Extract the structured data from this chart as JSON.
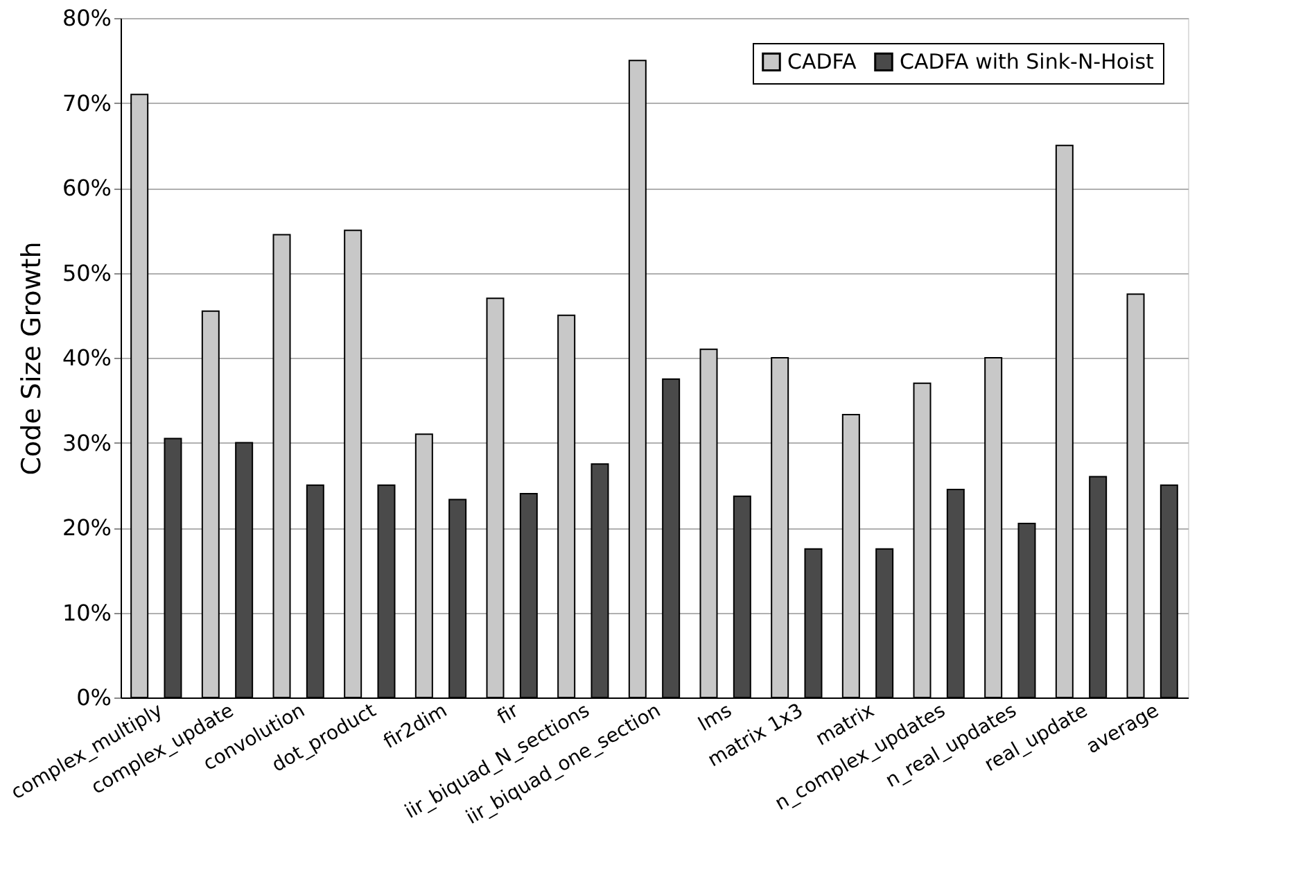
{
  "chart_data": {
    "type": "bar",
    "ylabel": "Code Size Growth",
    "categories": [
      "complex_multiply",
      "complex_update",
      "convolution",
      "dot_product",
      "fir2dim",
      "fir",
      "iir_biquad_N_sections",
      "iir_biquad_one_section",
      "lms",
      "matrix 1x3",
      "matrix",
      "n_complex_updates",
      "n_real_updates",
      "real_update",
      "average"
    ],
    "series": [
      {
        "name": "CADFA",
        "color": "#c8c8c8",
        "values": [
          71,
          45.5,
          54.5,
          55,
          31,
          47,
          45,
          75,
          41,
          40,
          33.3,
          37,
          40,
          65,
          47.5
        ]
      },
      {
        "name": "CADFA with Sink-N-Hoist",
        "color": "#4a4a4a",
        "values": [
          30.5,
          30,
          25,
          25,
          23.3,
          24,
          27.5,
          37.5,
          23.7,
          17.5,
          17.5,
          24.5,
          20.5,
          26,
          25
        ]
      }
    ],
    "ylim": [
      0,
      80
    ],
    "yticks": [
      {
        "value": 0,
        "label": "0%"
      },
      {
        "value": 10,
        "label": "10%"
      },
      {
        "value": 20,
        "label": "20%"
      },
      {
        "value": 30,
        "label": "30%"
      },
      {
        "value": 40,
        "label": "40%"
      },
      {
        "value": 50,
        "label": "50%"
      },
      {
        "value": 60,
        "label": "60%"
      },
      {
        "value": 70,
        "label": "70%"
      },
      {
        "value": 80,
        "label": "80%"
      }
    ],
    "grid": "y",
    "legend": "top right"
  }
}
